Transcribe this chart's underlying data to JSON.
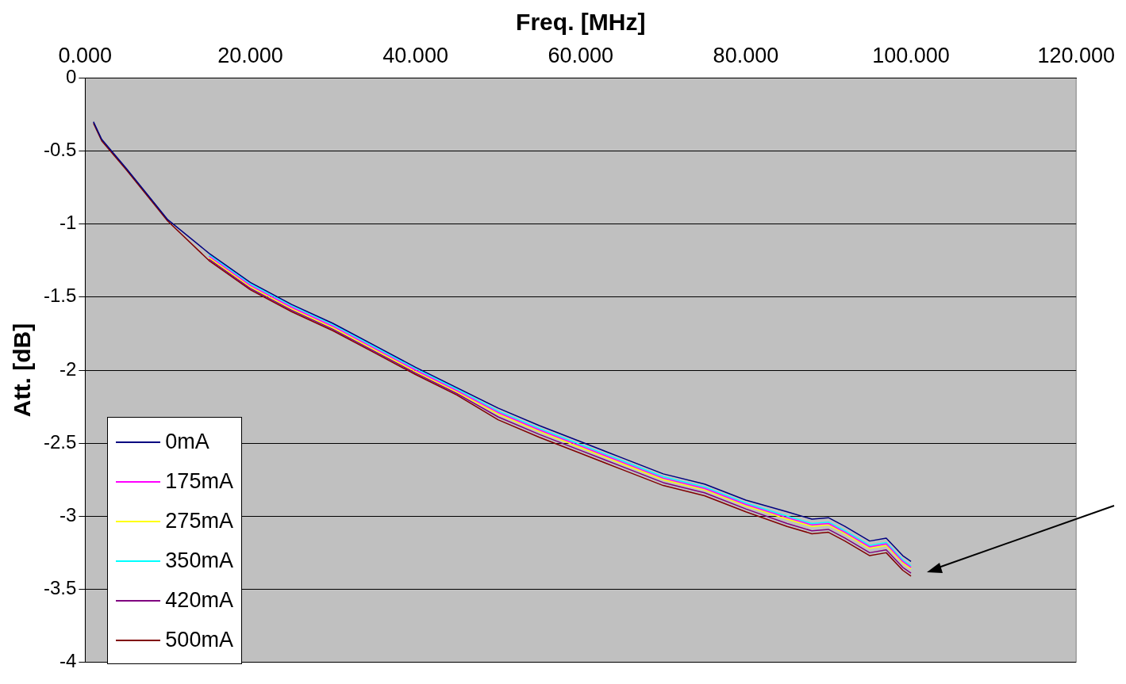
{
  "chart_data": {
    "type": "line",
    "xlabel": "Freq. [MHz]",
    "ylabel": "Att. [dB]",
    "x": [
      1,
      2,
      5,
      10,
      15,
      20,
      25,
      30,
      35,
      40,
      45,
      50,
      55,
      60,
      65,
      70,
      75,
      80,
      85,
      88,
      90,
      92,
      95,
      97,
      99,
      100
    ],
    "xlim": [
      0,
      120
    ],
    "xticks": [
      {
        "value": 0,
        "label": "0.000"
      },
      {
        "value": 20,
        "label": "20.000"
      },
      {
        "value": 40,
        "label": "40.000"
      },
      {
        "value": 60,
        "label": "60.000"
      },
      {
        "value": 80,
        "label": "80.000"
      },
      {
        "value": 100,
        "label": "100.000"
      },
      {
        "value": 120,
        "label": "120.000"
      }
    ],
    "ylim": [
      -4,
      0
    ],
    "yticks": [
      -4,
      -3.5,
      -3,
      -2.5,
      -2,
      -1.5,
      -1,
      -0.5,
      0
    ],
    "grid": "y",
    "legend": "bottom left",
    "marker": "none",
    "line_style": "solid",
    "series": [
      {
        "name": "0mA",
        "color": "#000080",
        "values": [
          -0.3,
          -0.42,
          -0.62,
          -0.97,
          -1.2,
          -1.4,
          -1.55,
          -1.68,
          -1.83,
          -1.98,
          -2.12,
          -2.26,
          -2.38,
          -2.49,
          -2.6,
          -2.71,
          -2.78,
          -2.89,
          -2.97,
          -3.02,
          -3.01,
          -3.07,
          -3.17,
          -3.15,
          -3.27,
          -3.31
        ]
      },
      {
        "name": "175mA",
        "color": "#ff00ff",
        "values": [
          null,
          null,
          null,
          null,
          -1.22,
          -1.42,
          -1.57,
          -1.7,
          -1.85,
          -2.0,
          -2.14,
          -2.29,
          -2.41,
          -2.52,
          -2.63,
          -2.74,
          -2.81,
          -2.92,
          -3.01,
          -3.06,
          -3.05,
          -3.11,
          -3.21,
          -3.19,
          -3.31,
          -3.35
        ]
      },
      {
        "name": "275mA",
        "color": "#ffff00",
        "values": [
          null,
          null,
          null,
          null,
          -1.23,
          -1.43,
          -1.58,
          -1.71,
          -1.86,
          -2.01,
          -2.15,
          -2.3,
          -2.42,
          -2.53,
          -2.64,
          -2.75,
          -2.82,
          -2.93,
          -3.02,
          -3.07,
          -3.06,
          -3.12,
          -3.22,
          -3.2,
          -3.32,
          -3.36
        ]
      },
      {
        "name": "350mA",
        "color": "#00ffff",
        "values": [
          null,
          null,
          null,
          null,
          -1.21,
          -1.41,
          -1.56,
          -1.69,
          -1.84,
          -1.99,
          -2.13,
          -2.28,
          -2.4,
          -2.51,
          -2.62,
          -2.73,
          -2.8,
          -2.91,
          -3.0,
          -3.05,
          -3.04,
          -3.1,
          -3.2,
          -3.18,
          -3.3,
          -3.34
        ]
      },
      {
        "name": "420mA",
        "color": "#800080",
        "values": [
          null,
          null,
          null,
          null,
          -1.24,
          -1.44,
          -1.59,
          -1.72,
          -1.87,
          -2.02,
          -2.16,
          -2.32,
          -2.44,
          -2.55,
          -2.66,
          -2.77,
          -2.84,
          -2.95,
          -3.05,
          -3.1,
          -3.09,
          -3.15,
          -3.25,
          -3.23,
          -3.35,
          -3.39
        ]
      },
      {
        "name": "500mA",
        "color": "#800000",
        "values": [
          -0.31,
          -0.43,
          -0.63,
          -0.98,
          -1.25,
          -1.45,
          -1.6,
          -1.73,
          -1.88,
          -2.03,
          -2.17,
          -2.34,
          -2.46,
          -2.57,
          -2.68,
          -2.79,
          -2.86,
          -2.97,
          -3.07,
          -3.12,
          -3.11,
          -3.17,
          -3.27,
          -3.25,
          -3.37,
          -3.41
        ]
      }
    ]
  }
}
